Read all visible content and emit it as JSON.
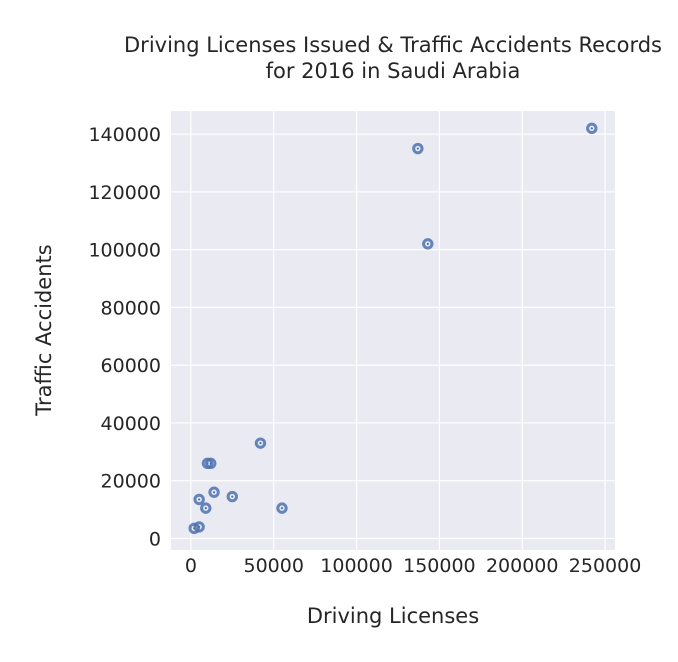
{
  "chart_data": {
    "type": "scatter",
    "title_lines": [
      "Driving Licenses Issued & Traffic Accidents Records",
      "for 2016 in Saudi Arabia"
    ],
    "xlabel": "Driving Licenses",
    "ylabel": "Traffic Accidents",
    "xlim": [
      -12000,
      256000
    ],
    "ylim": [
      -4000,
      148000
    ],
    "xticks": [
      0,
      50000,
      100000,
      150000,
      200000,
      250000
    ],
    "yticks": [
      0,
      20000,
      40000,
      60000,
      80000,
      100000,
      120000,
      140000
    ],
    "xtick_labels": [
      "0",
      "50000",
      "100000",
      "150000",
      "200000",
      "250000"
    ],
    "ytick_labels": [
      "0",
      "20000",
      "40000",
      "60000",
      "80000",
      "100000",
      "120000",
      "140000"
    ],
    "grid": true,
    "background": "#eaeaf2",
    "point_color": "#4c72b0",
    "points": [
      {
        "x": 242000,
        "y": 142000
      },
      {
        "x": 137000,
        "y": 135000
      },
      {
        "x": 143000,
        "y": 102000
      },
      {
        "x": 42000,
        "y": 33000
      },
      {
        "x": 10000,
        "y": 26000
      },
      {
        "x": 12000,
        "y": 26000
      },
      {
        "x": 14000,
        "y": 16000
      },
      {
        "x": 25000,
        "y": 14500
      },
      {
        "x": 5000,
        "y": 13500
      },
      {
        "x": 9000,
        "y": 10500
      },
      {
        "x": 55000,
        "y": 10500
      },
      {
        "x": 5000,
        "y": 4000
      },
      {
        "x": 2000,
        "y": 3500
      }
    ]
  }
}
